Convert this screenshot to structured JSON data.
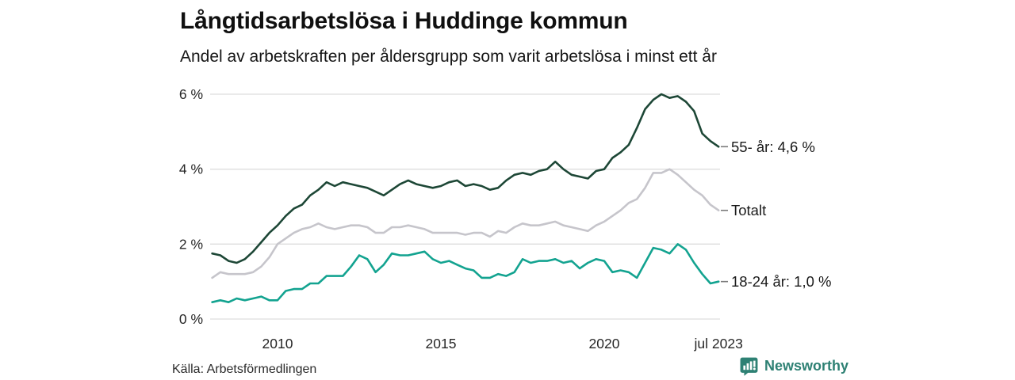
{
  "title": "Långtidsarbetslösa i Huddinge kommun",
  "subtitle": "Andel av arbetskraften per åldersgrupp som varit arbetslösa i minst ett år",
  "footer": {
    "source": "Källa: Arbetsförmedlingen",
    "brand": "Newsworthy"
  },
  "colors": {
    "brand_teal": "#2e8174",
    "grid": "#dedede",
    "tick_text": "#262626",
    "end_label_text": "#1a1a1a",
    "connector": "#7a7a7a"
  },
  "chart_data": {
    "type": "line",
    "title": "Långtidsarbetslösa i Huddinge kommun",
    "subtitle": "Andel av arbetskraften per åldersgrupp som varit arbetslösa i minst ett år",
    "unit": "% av arbetskraften",
    "grid": true,
    "legend_position": "line-end-right",
    "ylim": [
      0,
      6
    ],
    "xlim": [
      2008,
      2023.5
    ],
    "yticks": [
      {
        "value": 6,
        "label": "6 %"
      },
      {
        "value": 4,
        "label": "4 %"
      },
      {
        "value": 2,
        "label": "2 %"
      },
      {
        "value": 0,
        "label": "0 %"
      }
    ],
    "xticks": [
      {
        "value": 2010,
        "label": "2010"
      },
      {
        "value": 2015,
        "label": "2015"
      },
      {
        "value": 2020,
        "label": "2020"
      },
      {
        "value": 2023.5,
        "label": "jul 2023"
      }
    ],
    "x": [
      2008.0,
      2008.25,
      2008.5,
      2008.75,
      2009.0,
      2009.25,
      2009.5,
      2009.75,
      2010.0,
      2010.25,
      2010.5,
      2010.75,
      2011.0,
      2011.25,
      2011.5,
      2011.75,
      2012.0,
      2012.25,
      2012.5,
      2012.75,
      2013.0,
      2013.25,
      2013.5,
      2013.75,
      2014.0,
      2014.25,
      2014.5,
      2014.75,
      2015.0,
      2015.25,
      2015.5,
      2015.75,
      2016.0,
      2016.25,
      2016.5,
      2016.75,
      2017.0,
      2017.25,
      2017.5,
      2017.75,
      2018.0,
      2018.25,
      2018.5,
      2018.75,
      2019.0,
      2019.25,
      2019.5,
      2019.75,
      2020.0,
      2020.25,
      2020.5,
      2020.75,
      2021.0,
      2021.25,
      2021.5,
      2021.75,
      2022.0,
      2022.25,
      2022.5,
      2022.75,
      2023.0,
      2023.25,
      2023.5
    ],
    "series": [
      {
        "name": "55- år",
        "end_label": "55- år: 4,6 %",
        "end_value_text": "4,6 %",
        "color": "#1d4736",
        "values": [
          1.75,
          1.7,
          1.55,
          1.5,
          1.6,
          1.8,
          2.05,
          2.3,
          2.5,
          2.75,
          2.95,
          3.05,
          3.3,
          3.45,
          3.65,
          3.55,
          3.65,
          3.6,
          3.55,
          3.5,
          3.4,
          3.3,
          3.45,
          3.6,
          3.7,
          3.6,
          3.55,
          3.5,
          3.55,
          3.65,
          3.7,
          3.55,
          3.6,
          3.55,
          3.45,
          3.5,
          3.7,
          3.85,
          3.9,
          3.85,
          3.95,
          4.0,
          4.2,
          4.0,
          3.85,
          3.8,
          3.75,
          3.95,
          4.0,
          4.3,
          4.45,
          4.65,
          5.1,
          5.6,
          5.85,
          6.0,
          5.9,
          5.95,
          5.8,
          5.55,
          4.95,
          4.75,
          4.6
        ]
      },
      {
        "name": "Totalt",
        "end_label": "Totalt",
        "end_value_text": "2,9 %",
        "color": "#c6c5cb",
        "values": [
          1.1,
          1.25,
          1.2,
          1.2,
          1.2,
          1.25,
          1.4,
          1.65,
          2.0,
          2.15,
          2.3,
          2.4,
          2.45,
          2.55,
          2.45,
          2.4,
          2.45,
          2.5,
          2.5,
          2.45,
          2.3,
          2.3,
          2.45,
          2.45,
          2.5,
          2.45,
          2.4,
          2.3,
          2.3,
          2.3,
          2.3,
          2.25,
          2.3,
          2.3,
          2.2,
          2.35,
          2.3,
          2.45,
          2.55,
          2.5,
          2.5,
          2.55,
          2.6,
          2.5,
          2.45,
          2.4,
          2.35,
          2.5,
          2.6,
          2.75,
          2.9,
          3.1,
          3.2,
          3.5,
          3.9,
          3.9,
          4.0,
          3.85,
          3.65,
          3.45,
          3.3,
          3.05,
          2.9
        ]
      },
      {
        "name": "18-24 år",
        "end_label": "18-24 år: 1,0 %",
        "end_value_text": "1,0 %",
        "color": "#13a390",
        "values": [
          0.45,
          0.5,
          0.45,
          0.55,
          0.5,
          0.55,
          0.6,
          0.5,
          0.5,
          0.75,
          0.8,
          0.8,
          0.95,
          0.95,
          1.15,
          1.15,
          1.15,
          1.4,
          1.7,
          1.6,
          1.25,
          1.45,
          1.75,
          1.7,
          1.7,
          1.75,
          1.8,
          1.6,
          1.5,
          1.55,
          1.45,
          1.35,
          1.3,
          1.1,
          1.1,
          1.2,
          1.15,
          1.25,
          1.6,
          1.5,
          1.55,
          1.55,
          1.6,
          1.5,
          1.55,
          1.35,
          1.5,
          1.6,
          1.55,
          1.25,
          1.3,
          1.25,
          1.1,
          1.5,
          1.9,
          1.85,
          1.75,
          2.0,
          1.85,
          1.5,
          1.2,
          0.95,
          1.0
        ]
      }
    ]
  }
}
